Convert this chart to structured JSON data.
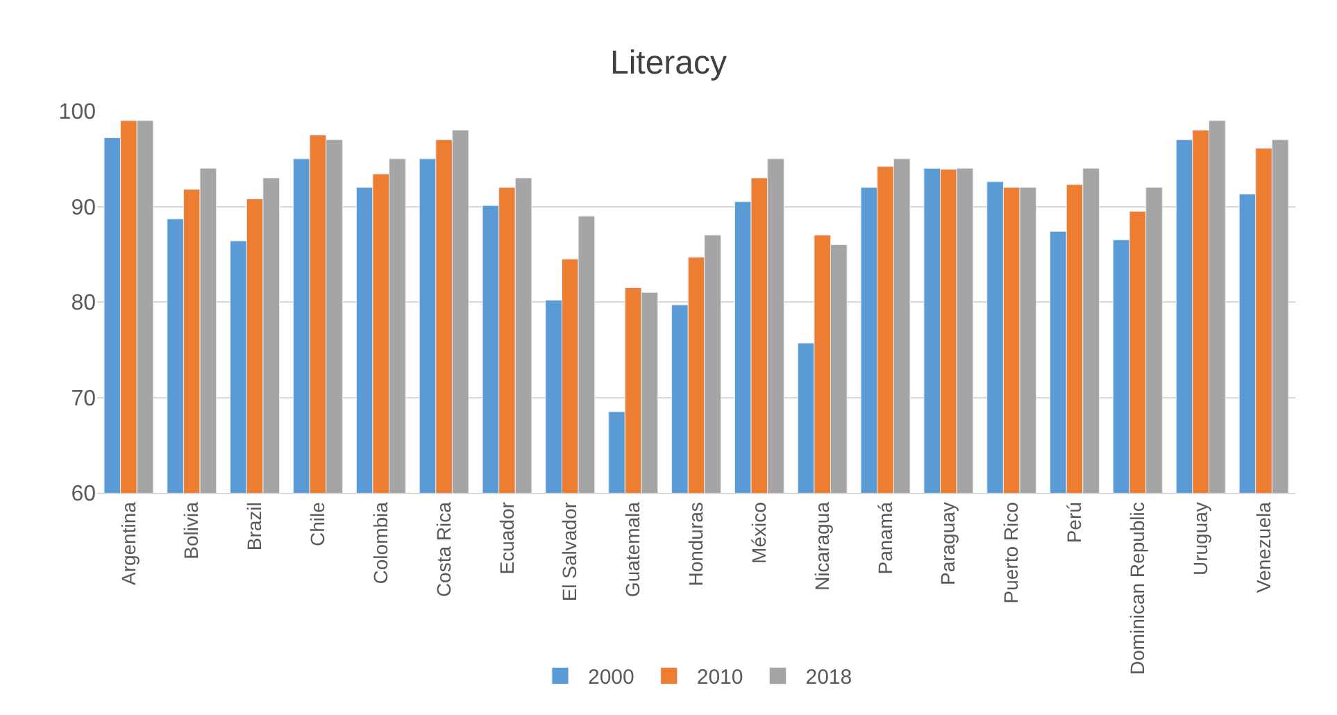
{
  "chart_data": {
    "type": "bar",
    "title": "Literacy",
    "categories": [
      "Argentina",
      "Bolivia",
      "Brazil",
      "Chile",
      "Colombia",
      "Costa Rica",
      "Ecuador",
      "El Salvador",
      "Guatemala",
      "Honduras",
      "México",
      "Nicaragua",
      "Panamá",
      "Paraguay",
      "Puerto Rico",
      "Perú",
      "Dominican Republic",
      "Uruguay",
      "Venezuela"
    ],
    "series": [
      {
        "name": "2000",
        "color": "#5b9bd5",
        "values": [
          97.2,
          88.7,
          86.4,
          95,
          92,
          95,
          90.1,
          80.2,
          68.5,
          79.7,
          90.5,
          75.7,
          92,
          94,
          92.6,
          87.4,
          86.5,
          97,
          91.3
        ]
      },
      {
        "name": "2010",
        "color": "#ed7d31",
        "values": [
          99,
          91.8,
          90.8,
          97.5,
          93.4,
          97,
          92,
          84.5,
          81.5,
          84.7,
          93,
          87,
          94.2,
          93.9,
          92,
          92.3,
          89.5,
          98,
          96.1
        ]
      },
      {
        "name": "2018",
        "color": "#a5a5a5",
        "values": [
          99,
          94,
          93,
          97,
          95,
          98,
          93,
          89,
          81,
          87,
          95,
          86,
          95,
          94,
          92,
          94,
          92,
          99,
          97
        ]
      }
    ],
    "ylim": [
      60,
      100
    ],
    "yticks": [
      60,
      70,
      80,
      90,
      100
    ],
    "grid": "y",
    "legend": "bottom"
  }
}
